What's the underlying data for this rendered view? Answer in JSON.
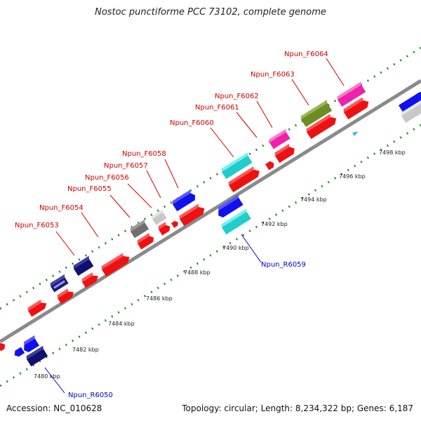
{
  "title": "Nostoc punctiforme PCC 73102, complete genome",
  "footer": {
    "accession": "Accession: NC_010628",
    "summary": "Topology: circular; Length: 8,234,322 bp; Genes: 6,187"
  },
  "colors": {
    "backbone": "#888888",
    "tick_dots": "#2e8b2e",
    "label_forward": "#cc0000",
    "label_reverse": "#0000cc"
  },
  "ticks": [
    "7480 kbp",
    "7482 kbp",
    "7484 kbp",
    "7486 kbp",
    "7488 kbp",
    "7490 kbp",
    "7492 kbp",
    "7494 kbp",
    "7496 kbp",
    "7498 kbp"
  ],
  "gene_labels": [
    {
      "name": "Npun_F6053",
      "strand": "forward"
    },
    {
      "name": "Npun_F6054",
      "strand": "forward"
    },
    {
      "name": "Npun_F6055",
      "strand": "forward"
    },
    {
      "name": "Npun_F6056",
      "strand": "forward"
    },
    {
      "name": "Npun_F6057",
      "strand": "forward"
    },
    {
      "name": "Npun_F6058",
      "strand": "forward"
    },
    {
      "name": "Npun_F6060",
      "strand": "forward"
    },
    {
      "name": "Npun_F6061",
      "strand": "forward"
    },
    {
      "name": "Npun_F6062",
      "strand": "forward"
    },
    {
      "name": "Npun_F6063",
      "strand": "forward"
    },
    {
      "name": "Npun_F6064",
      "strand": "forward"
    },
    {
      "name": "Npun_R6059",
      "strand": "reverse"
    },
    {
      "name": "Npun_R6050",
      "strand": "reverse"
    }
  ]
}
